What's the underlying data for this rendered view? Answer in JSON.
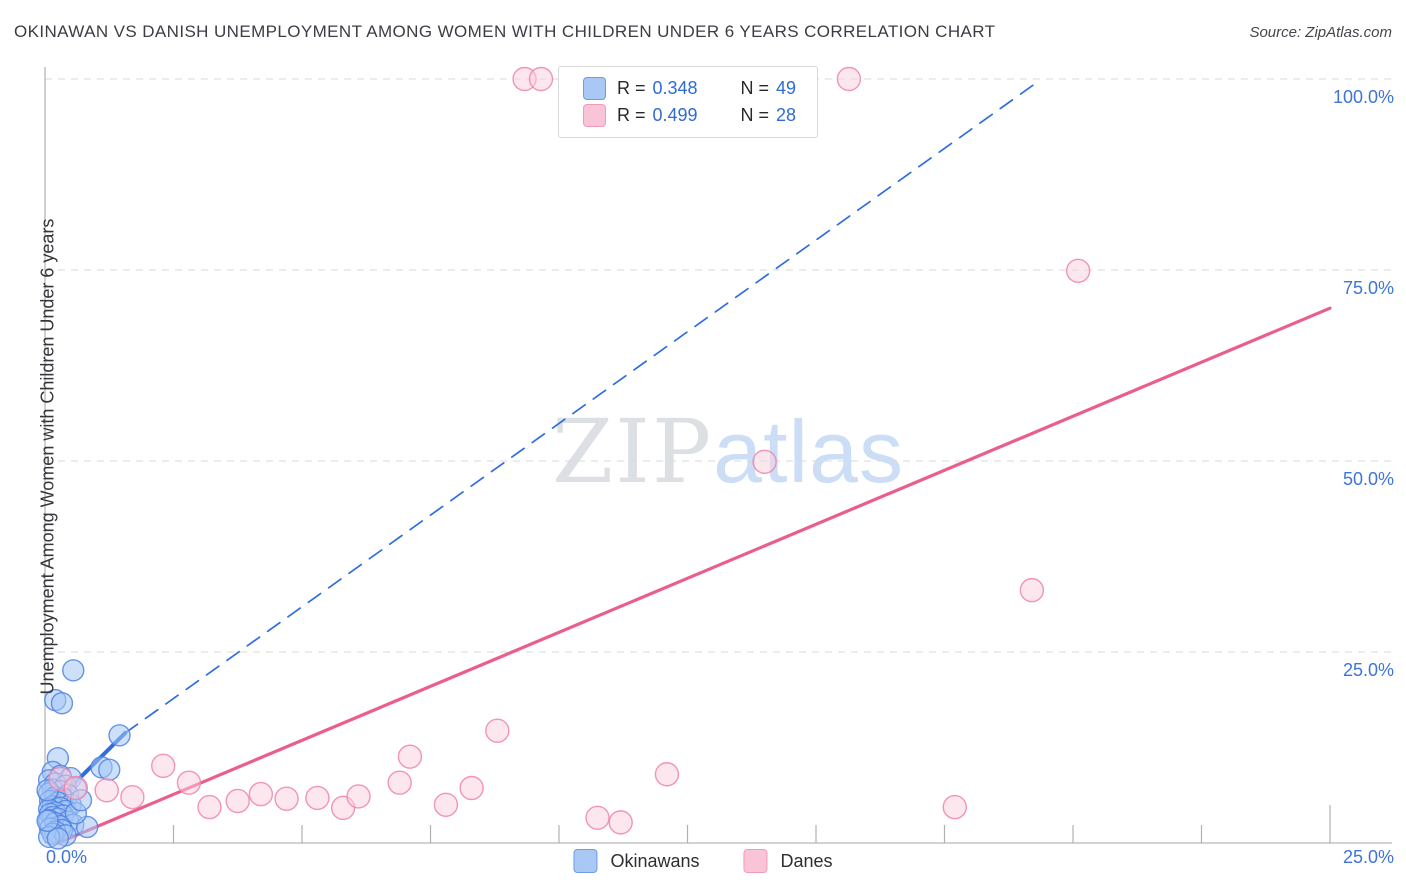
{
  "header": {
    "title": "OKINAWAN VS DANISH UNEMPLOYMENT AMONG WOMEN WITH CHILDREN UNDER 6 YEARS CORRELATION CHART",
    "source": "Source: ZipAtlas.com"
  },
  "watermark": {
    "part1": "ZIP",
    "part2": "atlas"
  },
  "legend_box": {
    "rows": [
      {
        "series": "Okinawans",
        "r_label": "R =",
        "r_value": "0.348",
        "n_label": "N =",
        "n_value": "49"
      },
      {
        "series": "Danes",
        "r_label": "R =",
        "r_value": "0.499",
        "n_label": "N =",
        "n_value": "28"
      }
    ]
  },
  "bottom_legend": {
    "okinawans_label": "Okinawans",
    "danes_label": "Danes"
  },
  "y_axis": {
    "title": "Unemployment Among Women with Children Under 6 years",
    "tick_labels": {
      "t100": "100.0%",
      "t75": "75.0%",
      "t50": "50.0%",
      "t25": "25.0%"
    }
  },
  "x_axis": {
    "left_label": "0.0%",
    "right_label": "25.0%"
  },
  "colors": {
    "okinawan_fill": "rgba(164,199,245,0.55)",
    "okinawan_stroke": "rgba(80,130,225,0.85)",
    "dane_fill": "rgba(251,207,223,0.5)",
    "dane_stroke": "rgba(240,130,170,0.85)",
    "okinawan_trend": "#2e6ede",
    "dane_trend": "#ea5d8f",
    "gridline": "#d8d8d8",
    "axis_line": "#b6b6b6",
    "tick": "#b0b0b0",
    "axis_label_blue": "#3e74db"
  },
  "chart_data": {
    "type": "scatter",
    "title": "Okinawan vs Danish Unemployment Among Women with Children Under 6 years",
    "xlabel_range": [
      "0.0%",
      "25.0%"
    ],
    "ylabel": "Unemployment Among Women with Children Under 6 years",
    "xlim": [
      0,
      25
    ],
    "ylim": [
      0,
      101.5
    ],
    "y_gridlines": [
      25,
      50,
      75,
      100
    ],
    "x_minor_ticks": [
      2.5,
      5,
      7.5,
      10,
      12.5,
      15,
      17.5,
      20,
      22.5
    ],
    "x_major_ticks": [
      25
    ],
    "grid": "dashed-horizontal",
    "legend_position": "top-center",
    "series": [
      {
        "name": "Okinawans",
        "r": 0.348,
        "n": 49,
        "points": [
          [
            0.55,
            22.6
          ],
          [
            0.2,
            18.7
          ],
          [
            0.33,
            18.3
          ],
          [
            1.45,
            14.1
          ],
          [
            0.25,
            11.1
          ],
          [
            1.1,
            9.9
          ],
          [
            1.25,
            9.6
          ],
          [
            0.15,
            9.3
          ],
          [
            0.3,
            8.8
          ],
          [
            0.5,
            8.5
          ],
          [
            0.08,
            8.2
          ],
          [
            0.2,
            7.8
          ],
          [
            0.4,
            7.5
          ],
          [
            0.6,
            7.2
          ],
          [
            0.15,
            7.0
          ],
          [
            0.3,
            6.8
          ],
          [
            0.08,
            6.5
          ],
          [
            0.45,
            6.3
          ],
          [
            0.2,
            6.0
          ],
          [
            0.35,
            5.8
          ],
          [
            0.1,
            5.5
          ],
          [
            0.25,
            5.3
          ],
          [
            0.5,
            5.0
          ],
          [
            0.15,
            4.8
          ],
          [
            0.3,
            4.6
          ],
          [
            0.08,
            4.4
          ],
          [
            0.4,
            4.2
          ],
          [
            0.2,
            4.0
          ],
          [
            0.1,
            3.8
          ],
          [
            0.35,
            3.6
          ],
          [
            0.15,
            3.4
          ],
          [
            0.25,
            3.2
          ],
          [
            0.08,
            3.0
          ],
          [
            0.45,
            2.8
          ],
          [
            0.2,
            2.6
          ],
          [
            0.55,
            2.4
          ],
          [
            0.3,
            2.2
          ],
          [
            0.82,
            2.1
          ],
          [
            0.1,
            1.9
          ],
          [
            0.33,
            1.7
          ],
          [
            0.2,
            1.5
          ],
          [
            0.15,
            1.2
          ],
          [
            0.4,
            1.0
          ],
          [
            0.08,
            0.8
          ],
          [
            0.25,
            0.6
          ],
          [
            0.6,
            3.9
          ],
          [
            0.7,
            5.6
          ],
          [
            0.05,
            2.9
          ],
          [
            0.05,
            6.9
          ]
        ]
      },
      {
        "name": "Danes",
        "r": 0.499,
        "n": 28,
        "points": [
          [
            9.33,
            100
          ],
          [
            9.65,
            100
          ],
          [
            15.64,
            100
          ],
          [
            20.1,
            74.9
          ],
          [
            14.0,
            49.9
          ],
          [
            19.2,
            33.1
          ],
          [
            8.8,
            14.7
          ],
          [
            7.1,
            11.3
          ],
          [
            2.3,
            10.1
          ],
          [
            12.1,
            9.0
          ],
          [
            2.8,
            7.9
          ],
          [
            6.9,
            7.9
          ],
          [
            8.3,
            7.2
          ],
          [
            1.2,
            6.9
          ],
          [
            1.7,
            6.0
          ],
          [
            4.2,
            6.4
          ],
          [
            4.7,
            5.8
          ],
          [
            5.3,
            5.9
          ],
          [
            5.8,
            4.6
          ],
          [
            6.1,
            6.1
          ],
          [
            3.2,
            4.7
          ],
          [
            3.75,
            5.5
          ],
          [
            7.8,
            5.0
          ],
          [
            10.75,
            3.3
          ],
          [
            11.2,
            2.7
          ],
          [
            17.7,
            4.7
          ],
          [
            0.3,
            8.4
          ],
          [
            0.6,
            7.2
          ]
        ]
      }
    ],
    "trend_lines": [
      {
        "series": "Okinawans",
        "style": "solid",
        "from": [
          0.0,
          4.0
        ],
        "to": [
          1.56,
          14.4
        ]
      },
      {
        "series": "Okinawans",
        "style": "dashed",
        "from": [
          1.56,
          14.4
        ],
        "to": [
          19.35,
          99.8
        ]
      },
      {
        "series": "Danes",
        "style": "solid",
        "from": [
          0.25,
          0.0
        ],
        "to": [
          25.0,
          70.0
        ]
      }
    ]
  }
}
